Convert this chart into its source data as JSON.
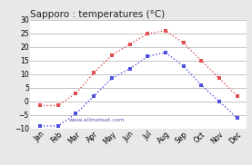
{
  "title": "Sapporo : temperatures (°C)",
  "months": [
    "Jan",
    "Feb",
    "Mar",
    "Apr",
    "May",
    "Jun",
    "Jul",
    "Aug",
    "Sep",
    "Oct",
    "Nov",
    "Dec"
  ],
  "max_temps": [
    -1.5,
    -1.5,
    3.0,
    10.5,
    17.0,
    21.0,
    24.9,
    26.0,
    21.5,
    15.0,
    8.5,
    2.0
  ],
  "min_temps": [
    -9.0,
    -9.0,
    -4.5,
    2.0,
    8.5,
    12.0,
    16.5,
    18.0,
    13.0,
    6.0,
    0.0,
    -6.0
  ],
  "max_color": "#e05050",
  "min_color": "#5050e0",
  "ylim": [
    -10,
    30
  ],
  "yticks": [
    -10,
    -5,
    0,
    5,
    10,
    15,
    20,
    25,
    30
  ],
  "bg_color": "#e8e8e8",
  "plot_bg": "#ffffff",
  "watermark": "www.allmetsat.com",
  "title_fontsize": 7.5,
  "tick_fontsize": 5.5,
  "watermark_fontsize": 4.5
}
